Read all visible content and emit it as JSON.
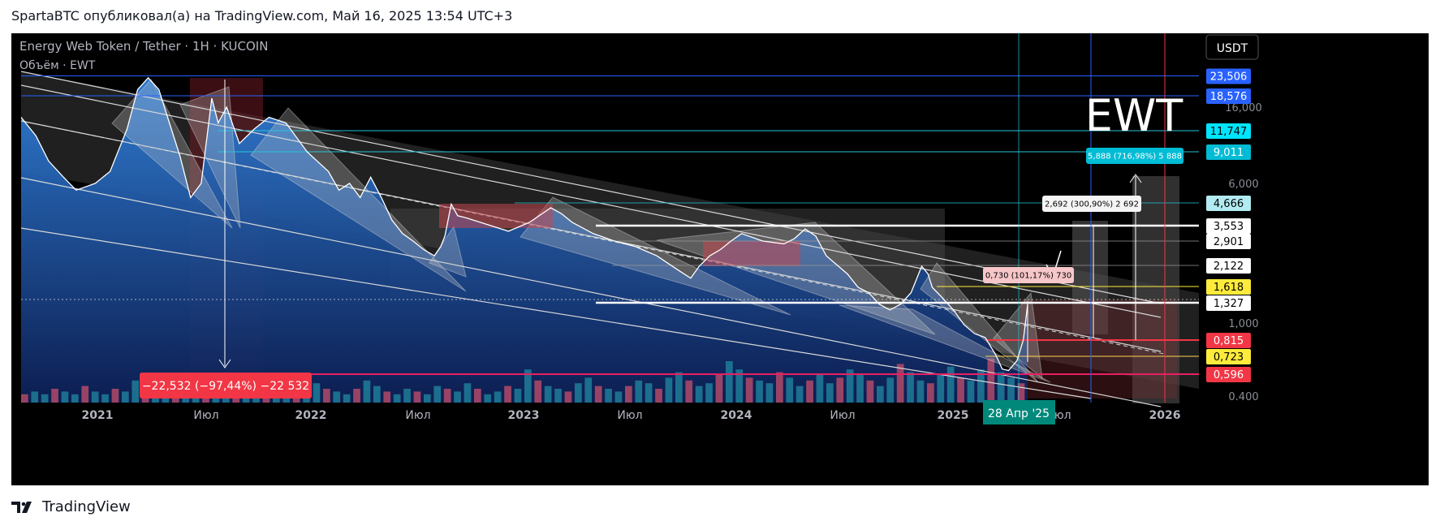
{
  "publication": "SpartaBTC опубликовал(а) на TradingView.com, Май 16, 2025 13:54 UTC+3",
  "footer": {
    "brand": "TradingView"
  },
  "chart_data": {
    "type": "line",
    "title": "Energy Web Token / Tether · 1H · KUCOIN",
    "subtitle": "Объём · EWT",
    "currency": "USDT",
    "watermark": "EWT",
    "x_ticks": [
      "2021",
      "Июл",
      "2022",
      "Июл",
      "2023",
      "Июл",
      "2024",
      "Июл",
      "2025",
      "Июл",
      "2026"
    ],
    "crosshair_date": "28 Апр '25",
    "y_axis_ticks": [
      16.0,
      6.0,
      1.0,
      0.4
    ],
    "y_axis_tick_labels": [
      "16,000",
      "6,000",
      "1,000",
      "0.400"
    ],
    "price_levels": [
      {
        "value": 23.506,
        "label": "23,506",
        "color": "#2962ff"
      },
      {
        "value": 18.576,
        "label": "18,576",
        "color": "#2962ff"
      },
      {
        "value": 11.747,
        "label": "11,747",
        "color": "#00e5ff"
      },
      {
        "value": 9.011,
        "label": "9,011",
        "color": "#00bcd4"
      },
      {
        "value": 4.666,
        "label": "4,666",
        "color": "#b2ebf2"
      },
      {
        "value": 3.553,
        "label": "3,553",
        "color": "#ffffff"
      },
      {
        "value": 2.901,
        "label": "2,901",
        "color": "#ffffff"
      },
      {
        "value": 2.122,
        "label": "2,122",
        "color": "#ffffff"
      },
      {
        "value": 1.618,
        "label": "1,618",
        "color": "#ffeb3b"
      },
      {
        "value": 1.327,
        "label": "1,327",
        "color": "#ffffff"
      },
      {
        "value": 0.815,
        "label": "0,815",
        "color": "#f23645"
      },
      {
        "value": 0.723,
        "label": "0,723",
        "color": "#ffeb3b"
      },
      {
        "value": 0.596,
        "label": "0,596",
        "color": "#f23645"
      }
    ],
    "annotations": [
      {
        "text": "−22,532 (−97,44%) −22 532",
        "kind": "drop"
      },
      {
        "text": "5,888 (716,98%) 5 888",
        "kind": "target"
      },
      {
        "text": "2,692 (300,90%) 2 692",
        "kind": "target"
      },
      {
        "text": "0,730 (101,17%) 730",
        "kind": "target"
      }
    ],
    "series": [
      {
        "name": "EWT/USDT",
        "values": [
          [
            0.0,
            14
          ],
          [
            0.7,
            11
          ],
          [
            1.3,
            8
          ],
          [
            2.0,
            6.5
          ],
          [
            2.6,
            5.5
          ],
          [
            3.5,
            6
          ],
          [
            4.2,
            7
          ],
          [
            5.0,
            12
          ],
          [
            5.5,
            20
          ],
          [
            6.0,
            23
          ],
          [
            6.5,
            20
          ],
          [
            7.0,
            13
          ],
          [
            7.5,
            8.5
          ],
          [
            8.0,
            5
          ],
          [
            8.5,
            6
          ],
          [
            9.0,
            18
          ],
          [
            9.3,
            13
          ],
          [
            9.7,
            16
          ],
          [
            10.3,
            10
          ],
          [
            11.0,
            12
          ],
          [
            11.7,
            14
          ],
          [
            12.5,
            13
          ],
          [
            13.5,
            9
          ],
          [
            14.5,
            7
          ],
          [
            15.0,
            5.5
          ],
          [
            15.5,
            6
          ],
          [
            16.0,
            5
          ],
          [
            16.5,
            6.5
          ],
          [
            17.0,
            5
          ],
          [
            17.5,
            3.8
          ],
          [
            18.0,
            3.2
          ],
          [
            18.5,
            2.9
          ],
          [
            19.0,
            2.6
          ],
          [
            19.5,
            2.4
          ],
          [
            19.8,
            2.7
          ],
          [
            20.0,
            3.1
          ],
          [
            20.3,
            4.6
          ],
          [
            20.6,
            4.0
          ],
          [
            21.0,
            3.9
          ],
          [
            22.0,
            3.6
          ],
          [
            23.0,
            3.3
          ],
          [
            24.0,
            3.7
          ],
          [
            25.0,
            4.4
          ],
          [
            25.5,
            4.1
          ],
          [
            26.0,
            3.7
          ],
          [
            27.0,
            3.2
          ],
          [
            28.0,
            2.9
          ],
          [
            29.0,
            2.7
          ],
          [
            30.0,
            2.4
          ],
          [
            31.0,
            2.0
          ],
          [
            31.6,
            1.8
          ],
          [
            32.0,
            2.1
          ],
          [
            32.5,
            2.4
          ],
          [
            33.0,
            2.6
          ],
          [
            33.5,
            2.9
          ],
          [
            34.0,
            3.2
          ],
          [
            35.0,
            2.9
          ],
          [
            36.0,
            2.8
          ],
          [
            36.5,
            3.0
          ],
          [
            37.0,
            3.4
          ],
          [
            37.5,
            3.1
          ],
          [
            38.0,
            2.4
          ],
          [
            39.0,
            1.9
          ],
          [
            39.5,
            1.6
          ],
          [
            40.0,
            1.5
          ],
          [
            40.5,
            1.3
          ],
          [
            41.0,
            1.2
          ],
          [
            41.5,
            1.3
          ],
          [
            42.0,
            1.5
          ],
          [
            42.5,
            2.1
          ],
          [
            42.8,
            1.9
          ],
          [
            43.0,
            1.6
          ],
          [
            43.5,
            1.4
          ],
          [
            44.0,
            1.2
          ],
          [
            44.5,
            0.98
          ],
          [
            45.0,
            0.88
          ],
          [
            45.5,
            0.84
          ],
          [
            46.0,
            0.73
          ],
          [
            46.3,
            0.63
          ],
          [
            46.6,
            0.62
          ],
          [
            47.0,
            0.69
          ],
          [
            47.3,
            0.82
          ],
          [
            47.5,
            1.3
          ]
        ]
      }
    ],
    "volume": [
      3,
      4,
      3,
      5,
      4,
      3,
      6,
      4,
      3,
      5,
      4,
      8,
      5,
      4,
      3,
      6,
      5,
      7,
      4,
      5,
      3,
      4,
      5,
      6,
      8,
      4,
      5,
      3,
      6,
      7,
      5,
      4,
      3,
      5,
      8,
      6,
      4,
      3,
      5,
      4,
      3,
      6,
      5,
      4,
      7,
      5,
      3,
      4,
      6,
      5,
      12,
      8,
      6,
      5,
      4,
      7,
      9,
      6,
      5,
      4,
      6,
      8,
      7,
      5,
      9,
      11,
      8,
      6,
      7,
      10,
      15,
      12,
      9,
      8,
      7,
      11,
      9,
      6,
      8,
      10,
      7,
      9,
      12,
      10,
      8,
      6,
      9,
      14,
      11,
      8,
      7,
      10,
      13,
      9,
      8,
      12,
      16,
      11,
      9,
      7
    ]
  }
}
